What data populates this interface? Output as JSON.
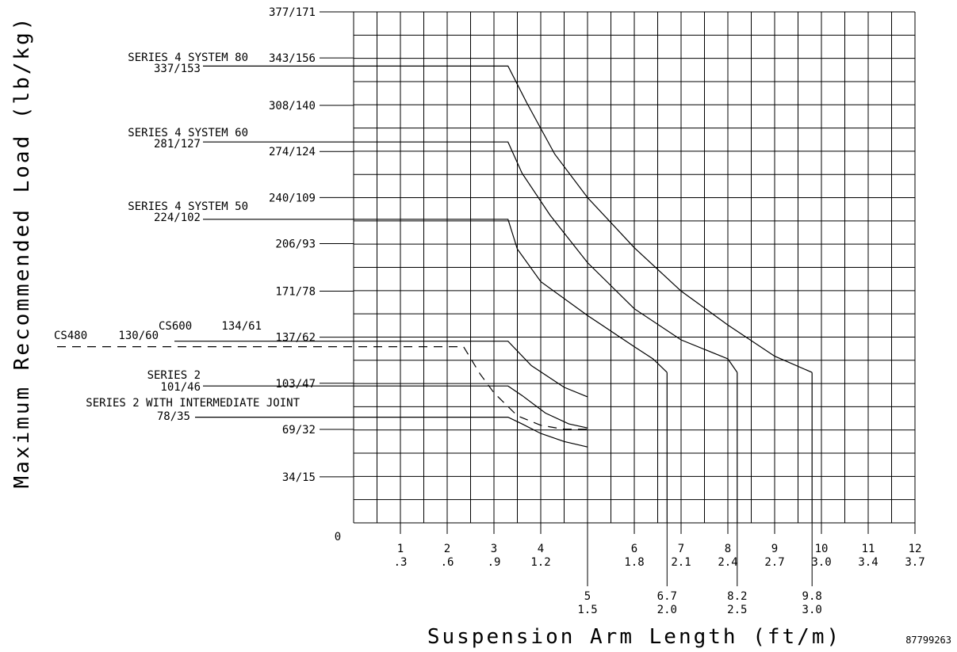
{
  "chart_data": {
    "type": "line",
    "title": "",
    "xlabel": "Suspension Arm Length (ft/m)",
    "ylabel": "Maximum Recommended Load (lb/kg)",
    "figure_id": "87799263",
    "xlim": [
      0,
      12
    ],
    "ylim": [
      0,
      377
    ],
    "grid": true,
    "x_tick_labels": [
      {
        "x": 1,
        "ft": "1",
        "m": ".3"
      },
      {
        "x": 2,
        "ft": "2",
        "m": ".6"
      },
      {
        "x": 3,
        "ft": "3",
        "m": ".9"
      },
      {
        "x": 4,
        "ft": "4",
        "m": "1.2"
      },
      {
        "x": 6,
        "ft": "6",
        "m": "1.8"
      },
      {
        "x": 7,
        "ft": "7",
        "m": "2.1"
      },
      {
        "x": 8,
        "ft": "8",
        "m": "2.4"
      },
      {
        "x": 9,
        "ft": "9",
        "m": "2.7"
      },
      {
        "x": 10,
        "ft": "10",
        "m": "3.0"
      },
      {
        "x": 11,
        "ft": "11",
        "m": "3.4"
      },
      {
        "x": 12,
        "ft": "12",
        "m": "3.7"
      }
    ],
    "x_extended_labels": [
      {
        "x": 5,
        "ft": "5",
        "m": "1.5"
      },
      {
        "x": 6.7,
        "ft": "6.7",
        "m": "2.0"
      },
      {
        "x": 8.2,
        "ft": "8.2",
        "m": "2.5"
      },
      {
        "x": 9.8,
        "ft": "9.8",
        "m": "3.0"
      }
    ],
    "zero_label": "0",
    "y_ticks": [
      {
        "value": 377,
        "label": "377/171"
      },
      {
        "value": 343,
        "label": "343/156"
      },
      {
        "value": 308,
        "label": "308/140"
      },
      {
        "value": 274,
        "label": "274/124"
      },
      {
        "value": 240,
        "label": "240/109"
      },
      {
        "value": 206,
        "label": "206/93"
      },
      {
        "value": 171,
        "label": "171/78"
      },
      {
        "value": 137,
        "label": "137/62"
      },
      {
        "value": 103,
        "label": "103/47"
      },
      {
        "value": 69,
        "label": "69/32"
      },
      {
        "value": 34,
        "label": "34/15"
      }
    ],
    "series": [
      {
        "name": "SERIES 4  SYSTEM 80",
        "value_label": "337/153",
        "dashed": false,
        "points": [
          [
            0,
            337
          ],
          [
            3.3,
            337
          ],
          [
            3.7,
            310
          ],
          [
            4.3,
            272
          ],
          [
            5,
            240
          ],
          [
            6,
            203
          ],
          [
            7,
            171
          ],
          [
            8,
            146
          ],
          [
            9,
            123
          ],
          [
            9.8,
            111
          ]
        ]
      },
      {
        "name": "SERIES 4  SYSTEM 60",
        "value_label": "281/127",
        "dashed": false,
        "points": [
          [
            0,
            281
          ],
          [
            3.3,
            281
          ],
          [
            3.6,
            258
          ],
          [
            4.2,
            227
          ],
          [
            5,
            192
          ],
          [
            6,
            158
          ],
          [
            7,
            135
          ],
          [
            8,
            121
          ],
          [
            8.2,
            111
          ]
        ]
      },
      {
        "name": "SERIES 4  SYSTEM 50",
        "value_label": "224/102",
        "dashed": false,
        "points": [
          [
            0,
            224
          ],
          [
            3.3,
            224
          ],
          [
            3.5,
            202
          ],
          [
            4,
            178
          ],
          [
            5,
            153
          ],
          [
            6,
            130
          ],
          [
            6.4,
            121
          ],
          [
            6.7,
            111
          ]
        ]
      },
      {
        "name": "CS600",
        "value_label": "134/61",
        "dashed": false,
        "points": [
          [
            0,
            134
          ],
          [
            3.3,
            134
          ],
          [
            3.8,
            116
          ],
          [
            4.5,
            100
          ],
          [
            5,
            93
          ]
        ]
      },
      {
        "name": "CS480",
        "value_label": "130/60",
        "dashed": true,
        "points": [
          [
            0,
            130
          ],
          [
            2.35,
            130
          ],
          [
            2.7,
            110
          ],
          [
            3,
            96
          ],
          [
            3.5,
            79
          ],
          [
            4,
            72
          ],
          [
            4.5,
            69
          ],
          [
            5,
            69
          ]
        ]
      },
      {
        "name": "SERIES 2",
        "value_label": "101/46",
        "dashed": false,
        "points": [
          [
            0,
            101
          ],
          [
            3.3,
            101
          ],
          [
            3.6,
            94
          ],
          [
            4.1,
            81
          ],
          [
            4.6,
            73
          ],
          [
            5,
            70
          ]
        ]
      },
      {
        "name": "SERIES 2 WITH INTERMEDIATE JOINT",
        "value_label": "78/35",
        "dashed": false,
        "points": [
          [
            0,
            78
          ],
          [
            3.3,
            78
          ],
          [
            3.6,
            73
          ],
          [
            4,
            66
          ],
          [
            4.5,
            60
          ],
          [
            5,
            56
          ]
        ]
      }
    ]
  }
}
